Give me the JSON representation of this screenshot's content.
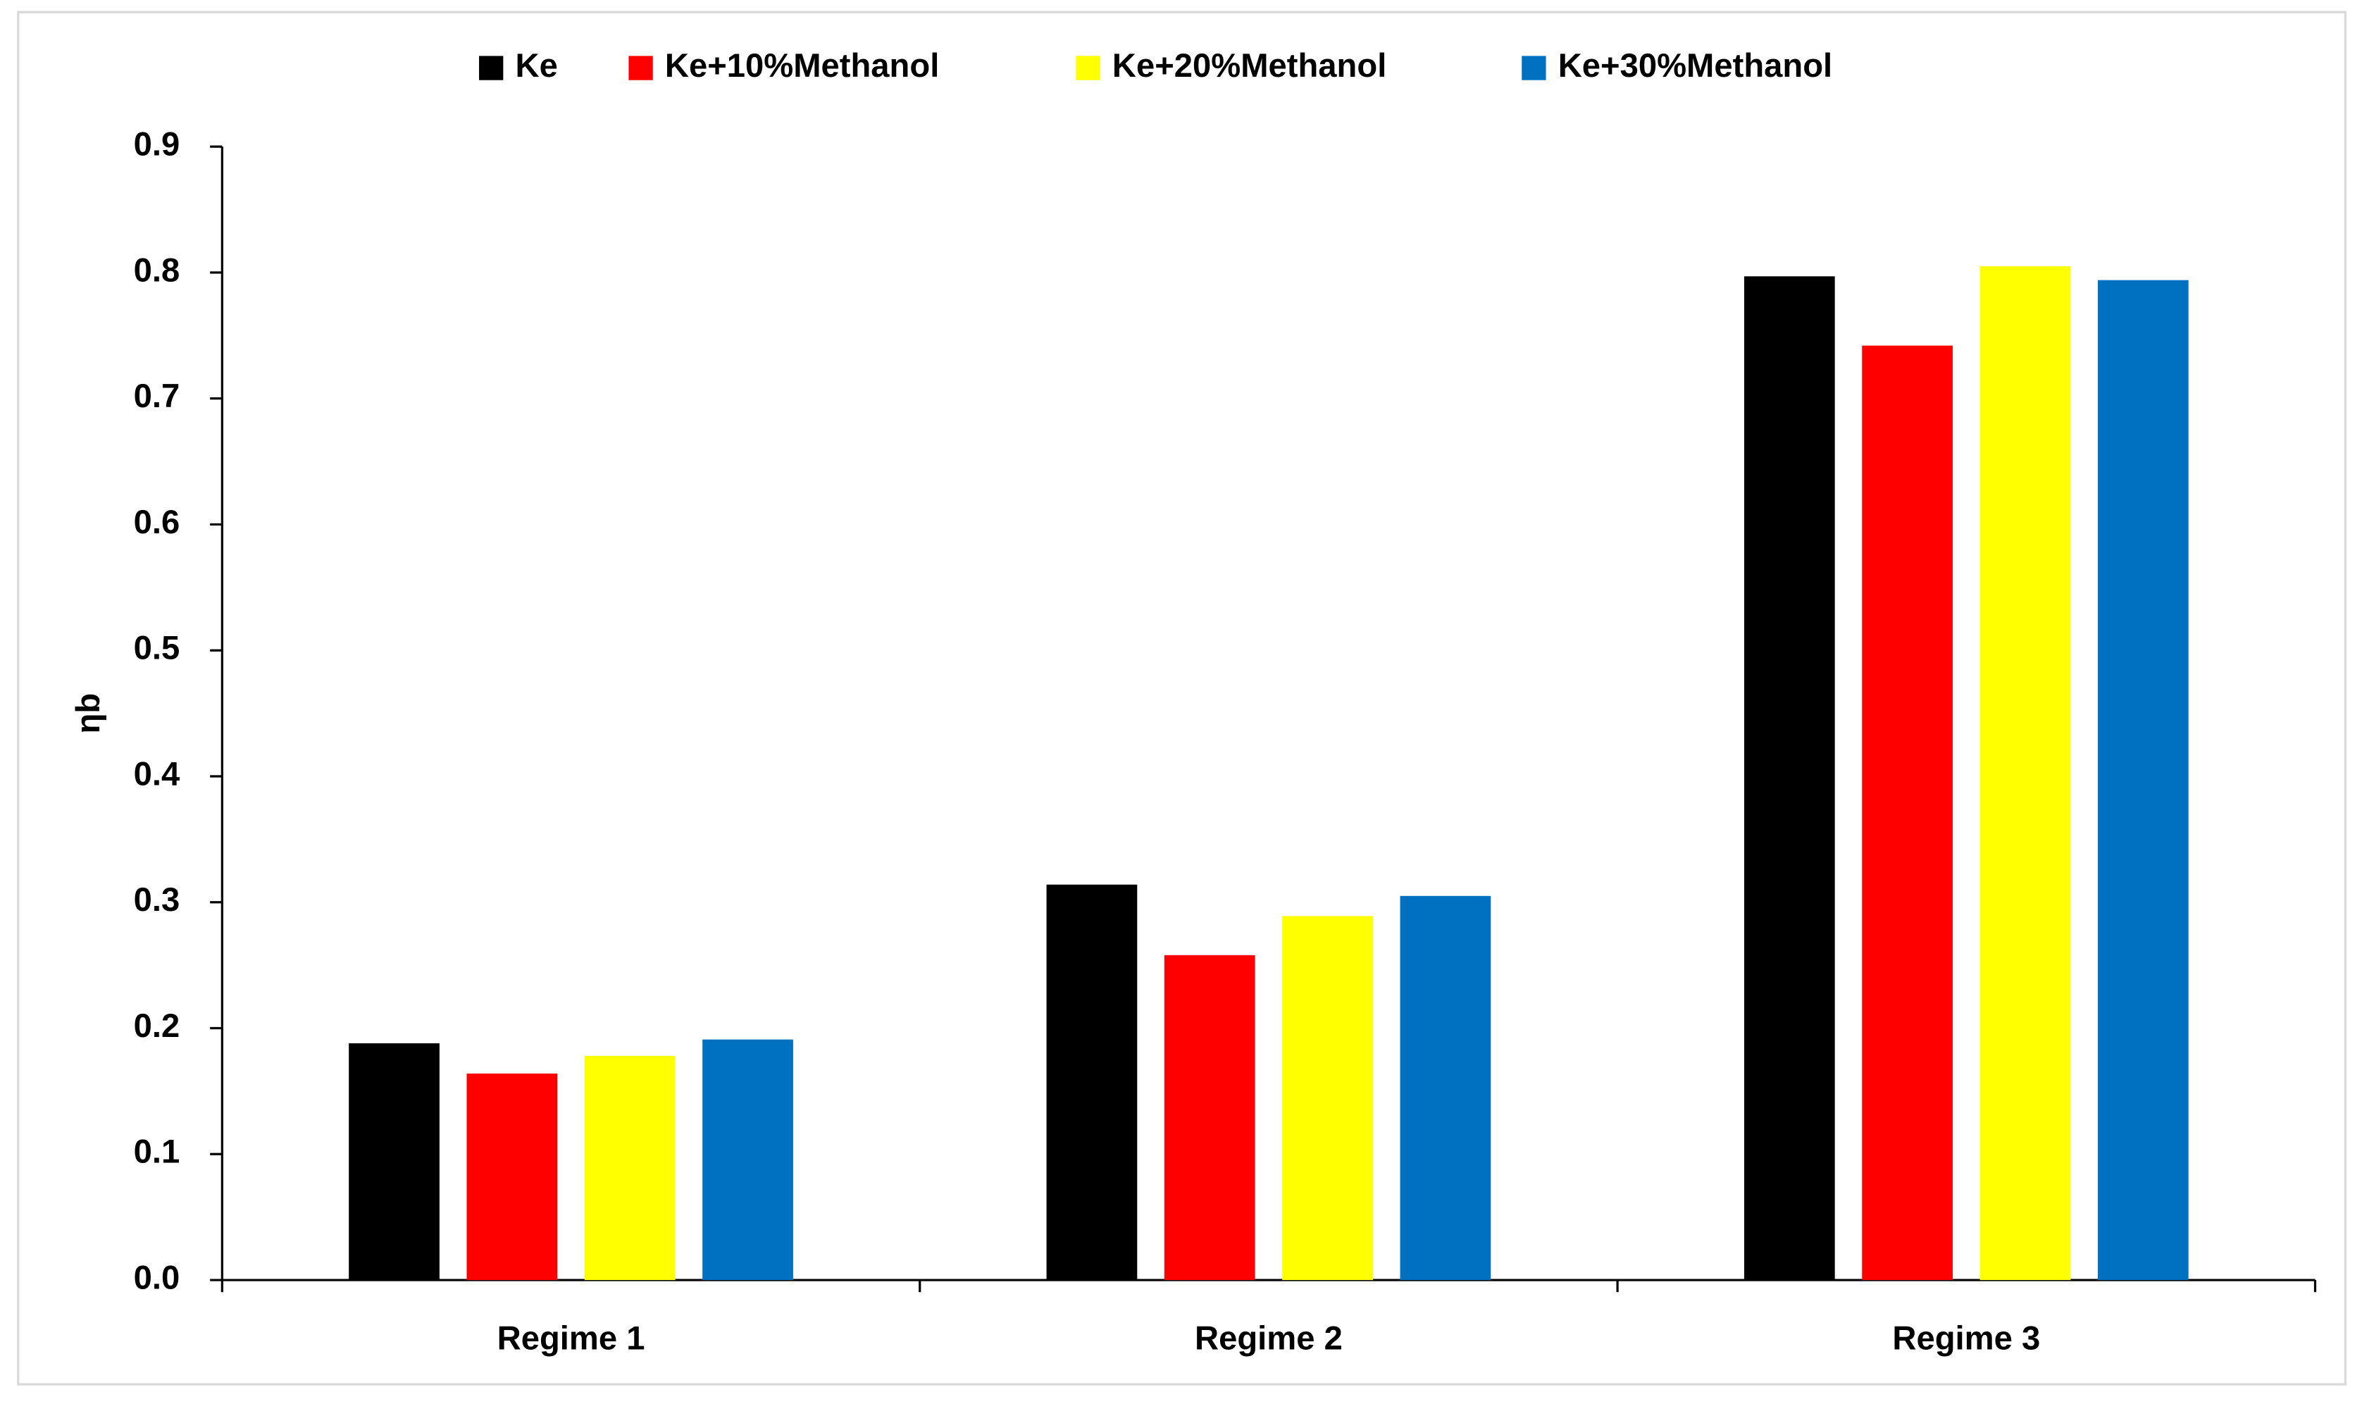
{
  "chart_data": {
    "type": "bar",
    "y_label": "ηb",
    "categories": [
      "Regime 1",
      "Regime 2",
      "Regime 3"
    ],
    "series": [
      {
        "name": "Ke",
        "color": "#000000",
        "values": [
          0.188,
          0.314,
          0.797
        ]
      },
      {
        "name": "Ke+10%Methanol",
        "color": "#ff0000",
        "values": [
          0.164,
          0.258,
          0.742
        ]
      },
      {
        "name": "Ke+20%Methanol",
        "color": "#ffff00",
        "values": [
          0.178,
          0.289,
          0.805
        ]
      },
      {
        "name": "Ke+30%Methanol",
        "color": "#0070c0",
        "values": [
          0.191,
          0.305,
          0.794
        ]
      }
    ],
    "ylim": [
      0,
      0.9
    ],
    "yticks": [
      {
        "value": 0,
        "label": "0.0"
      },
      0.1,
      0.2,
      0.3,
      0.4,
      0.5,
      0.6,
      0.7,
      0.8,
      0.9
    ],
    "grid": false,
    "legend": "top"
  }
}
